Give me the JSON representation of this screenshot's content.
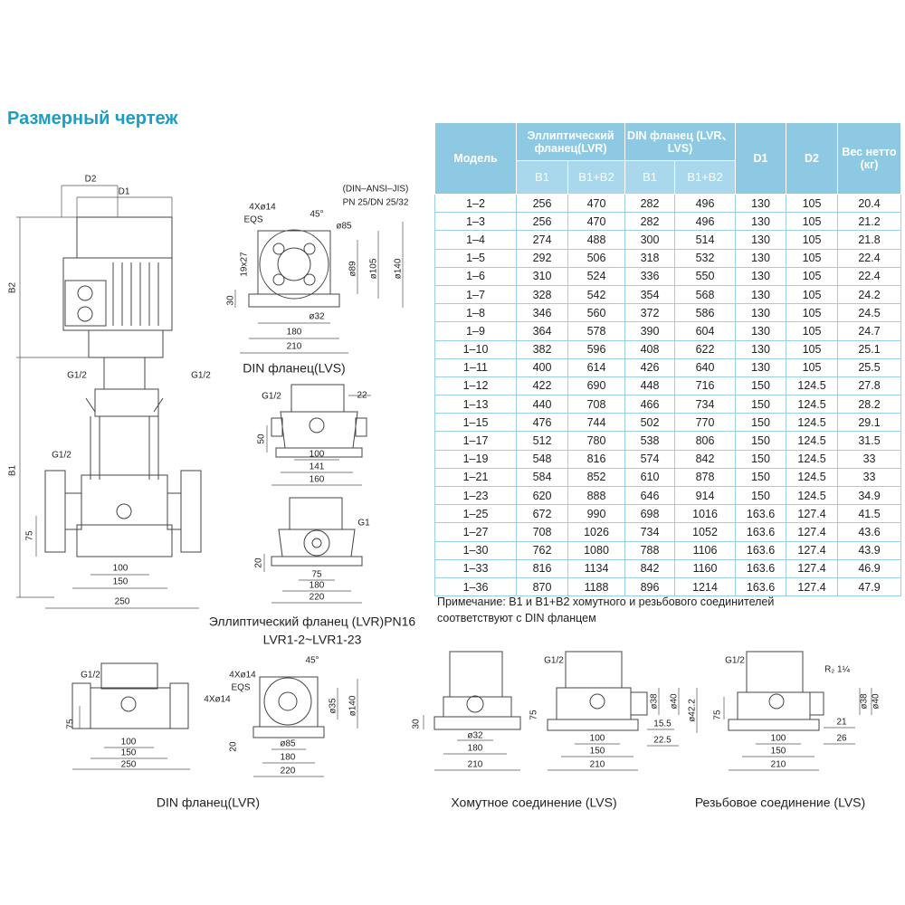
{
  "title": "Размерный чертеж",
  "table": {
    "header": {
      "model": "Модель",
      "elliptical": "Эллиптический фланец(LVR)",
      "din": "DIN фланец (LVR、LVS)",
      "d1": "D1",
      "d2": "D2",
      "weight": "Вес нетто (кг)",
      "sub": [
        "B1",
        "B1+B2",
        "B1",
        "B1+B2"
      ]
    },
    "rows": [
      [
        "1–2",
        256,
        470,
        282,
        496,
        130,
        105,
        20.4
      ],
      [
        "1–3",
        256,
        470,
        282,
        496,
        130,
        105,
        21.2
      ],
      [
        "1–4",
        274,
        488,
        300,
        514,
        130,
        105,
        21.8
      ],
      [
        "1–5",
        292,
        506,
        318,
        532,
        130,
        105,
        22.4
      ],
      [
        "1–6",
        310,
        524,
        336,
        550,
        130,
        105,
        22.4
      ],
      [
        "1–7",
        328,
        542,
        354,
        568,
        130,
        105,
        24.2
      ],
      [
        "1–8",
        346,
        560,
        372,
        586,
        130,
        105,
        24.5
      ],
      [
        "1–9",
        364,
        578,
        390,
        604,
        130,
        105,
        24.7
      ],
      [
        "1–10",
        382,
        596,
        408,
        622,
        130,
        105,
        25.1
      ],
      [
        "1–11",
        400,
        614,
        426,
        640,
        130,
        105,
        25.5
      ],
      [
        "1–12",
        422,
        690,
        448,
        716,
        150,
        124.5,
        27.8
      ],
      [
        "1–13",
        440,
        708,
        466,
        734,
        150,
        124.5,
        28.2
      ],
      [
        "1–15",
        476,
        744,
        502,
        770,
        150,
        124.5,
        29.1
      ],
      [
        "1–17",
        512,
        780,
        538,
        806,
        150,
        124.5,
        31.5
      ],
      [
        "1–19",
        548,
        816,
        574,
        842,
        150,
        124.5,
        33
      ],
      [
        "1–21",
        584,
        852,
        610,
        878,
        150,
        124.5,
        33
      ],
      [
        "1–23",
        620,
        888,
        646,
        914,
        150,
        124.5,
        34.9
      ],
      [
        "1–25",
        672,
        990,
        698,
        1016,
        163.6,
        127.4,
        41.5
      ],
      [
        "1–27",
        708,
        1026,
        734,
        1052,
        163.6,
        127.4,
        43.6
      ],
      [
        "1–30",
        762,
        1080,
        788,
        1106,
        163.6,
        127.4,
        43.9
      ],
      [
        "1–33",
        816,
        1134,
        842,
        1160,
        163.6,
        127.4,
        46.9
      ],
      [
        "1–36",
        870,
        1188,
        896,
        1214,
        163.6,
        127.4,
        47.9
      ]
    ]
  },
  "note": "Примечание: B1 и B1+B2 хомутного и резьбового соединителей соответствуют с DIN фланцем",
  "drawings": {
    "main": {
      "caption": "Эллиптический фланец (LVR)PN16",
      "subcaption": "LVR1-2~LVR1-23",
      "labels": [
        "D2",
        "D1",
        "B2",
        "B1",
        "G1/2",
        "G1/2",
        "G1/2",
        "75",
        "100",
        "150",
        "250"
      ]
    },
    "din_lvs": {
      "caption": "DIN фланец(LVS)",
      "labels": [
        "(DIN–ANSI–JIS)",
        "PN 25/DN 25/32",
        "4Xø14",
        "EQS",
        "45°",
        "ø85",
        "19x27",
        "ø89",
        "ø105",
        "ø140",
        "30",
        "ø32",
        "180",
        "210"
      ]
    },
    "side_a": {
      "labels": [
        "G1/2",
        "22",
        "50",
        "100",
        "141",
        "160"
      ]
    },
    "side_b": {
      "labels": [
        "G1",
        "20",
        "75",
        "180",
        "220"
      ]
    },
    "din_lvr": {
      "caption": "DIN фланец(LVR)",
      "labels": [
        "G1/2",
        "75",
        "100",
        "150",
        "250",
        "4Xø14",
        "EQS",
        "45°",
        "4Xø14",
        "ø140",
        "ø35",
        "20",
        "ø85",
        "180",
        "220"
      ]
    },
    "clamp": {
      "caption": "Хомутное соединение (LVS)",
      "labels": [
        "30",
        "ø32",
        "180",
        "210",
        "G1/2",
        "75",
        "ø38",
        "ø40",
        "ø42.2",
        "15.5",
        "22.5",
        "100",
        "150",
        "210"
      ]
    },
    "thread": {
      "caption": "Резьбовое соединение (LVS)",
      "labels": [
        "G1/2",
        "R₂ 1¼",
        "ø38",
        "ø40",
        "75",
        "21",
        "26",
        "100",
        "150",
        "210"
      ]
    }
  }
}
